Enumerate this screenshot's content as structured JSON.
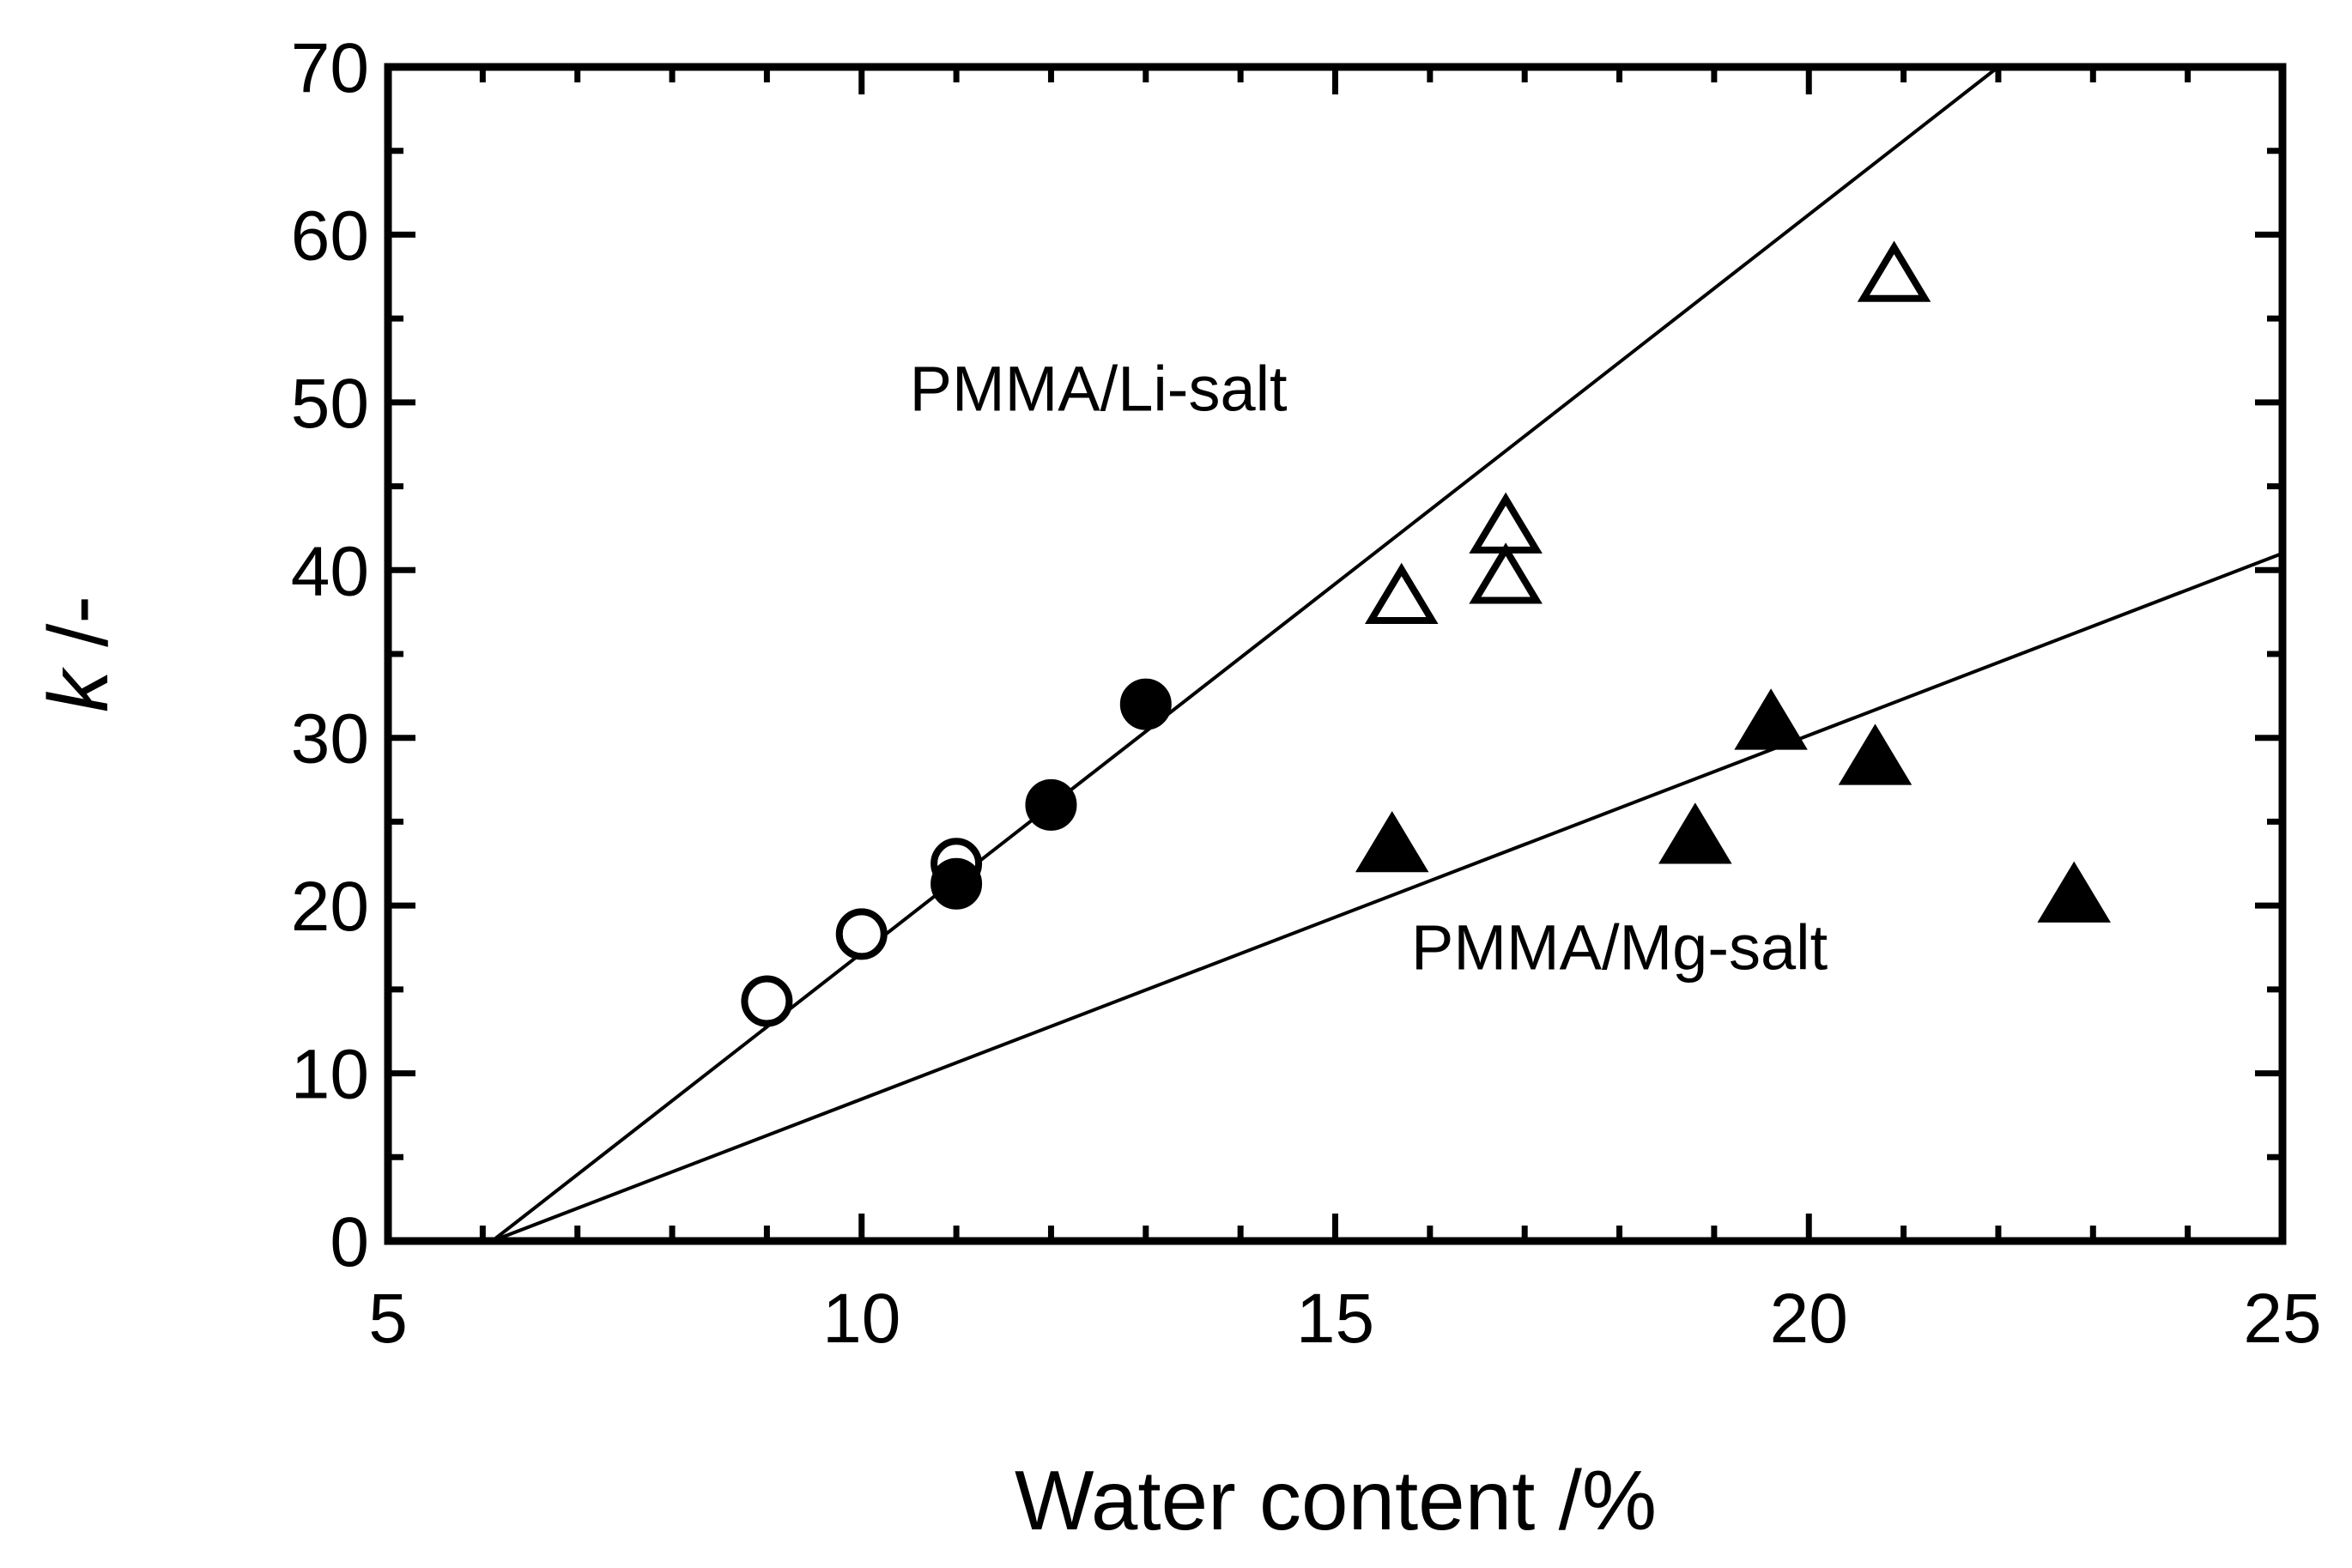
{
  "chart_data": {
    "type": "scatter",
    "title": "",
    "xlabel": "Water content /%",
    "ylabel_symbol": "k",
    "ylabel_unit": " /-",
    "xlim": [
      5,
      25
    ],
    "ylim": [
      0,
      70
    ],
    "xticks": [
      5,
      10,
      15,
      20,
      25
    ],
    "yticks": [
      0,
      10,
      20,
      30,
      40,
      50,
      60,
      70
    ],
    "grid": false,
    "series": [
      {
        "name": "open-circle",
        "marker": "circle",
        "filled": false,
        "points": [
          [
            9.0,
            14.3
          ],
          [
            10.0,
            18.3
          ],
          [
            11.0,
            22.5
          ]
        ]
      },
      {
        "name": "filled-circle",
        "marker": "circle",
        "filled": true,
        "points": [
          [
            11.0,
            21.3
          ],
          [
            12.0,
            26.0
          ],
          [
            13.0,
            32.0
          ]
        ]
      },
      {
        "name": "open-triangle",
        "marker": "triangle",
        "filled": false,
        "points": [
          [
            15.7,
            38.3
          ],
          [
            16.8,
            42.5
          ],
          [
            16.8,
            39.5
          ],
          [
            20.9,
            57.5
          ]
        ]
      },
      {
        "name": "filled-triangle",
        "marker": "triangle",
        "filled": true,
        "points": [
          [
            15.6,
            23.5
          ],
          [
            18.8,
            24.0
          ],
          [
            19.6,
            30.8
          ],
          [
            20.7,
            28.7
          ],
          [
            22.8,
            20.5
          ]
        ]
      }
    ],
    "fit_lines": [
      {
        "name": "Li-salt fit",
        "from": [
          6.1,
          0
        ],
        "to": [
          22.0,
          70
        ]
      },
      {
        "name": "Mg-salt fit",
        "from": [
          6.1,
          0
        ],
        "to": [
          25.0,
          41.0
        ]
      }
    ],
    "annotations": [
      {
        "text": "PMMA/Li-salt",
        "x": 12.5,
        "y": 49.5
      },
      {
        "text": "PMMA/Mg-salt",
        "x": 18.0,
        "y": 16.2
      }
    ]
  }
}
